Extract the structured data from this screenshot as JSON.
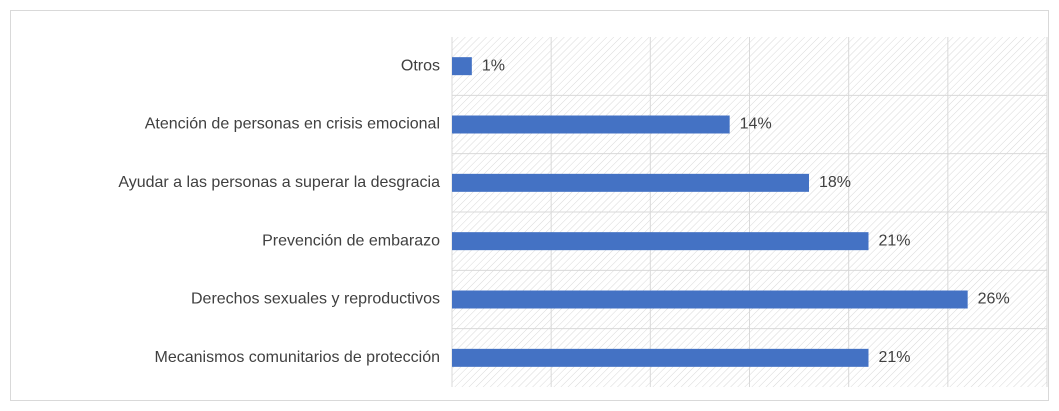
{
  "chart_data": {
    "type": "bar",
    "orientation": "horizontal",
    "categories": [
      "Otros",
      "Atención de personas en crisis emocional",
      "Ayudar a las personas a superar la desgracia",
      "Prevención de embarazo",
      "Derechos sexuales y reproductivos",
      "Mecanismos comunitarios de protección"
    ],
    "values": [
      1,
      14,
      18,
      21,
      26,
      21
    ],
    "value_labels": [
      "1%",
      "14%",
      "18%",
      "21%",
      "26%",
      "21%"
    ],
    "color": "#4472c4",
    "xlim": [
      0,
      30
    ],
    "xticks": [
      0,
      5,
      10,
      15,
      20,
      25,
      30
    ],
    "grid": true
  }
}
